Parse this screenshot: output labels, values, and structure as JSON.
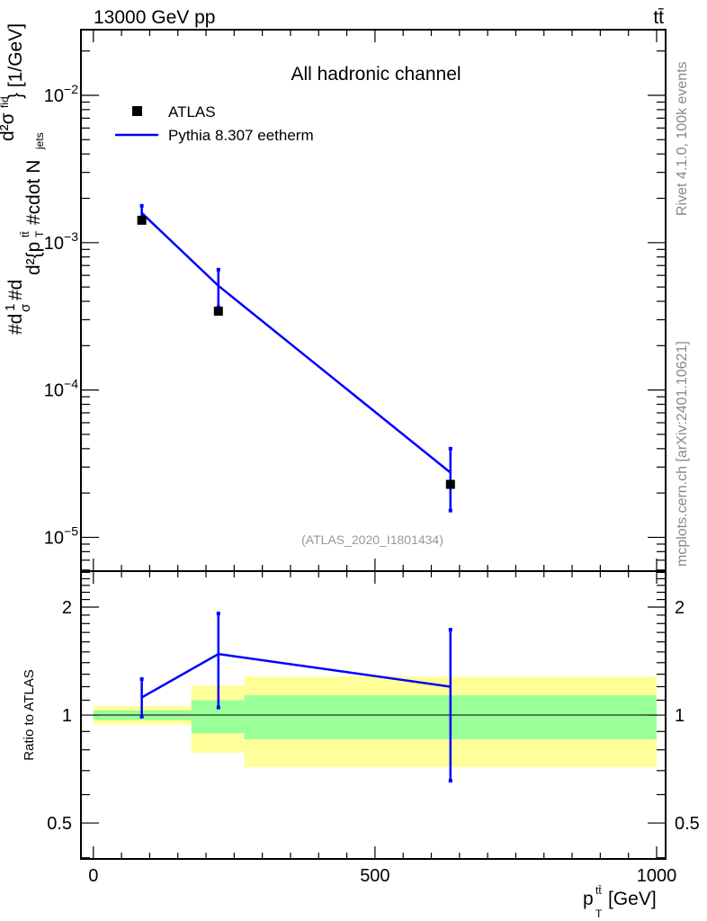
{
  "chart_data": [
    {
      "type": "line",
      "panel": "main",
      "title": "All hadronic channel",
      "top_left_label": "13000 GeV pp",
      "top_right_label": "tt̄",
      "ylabel": "#d¹/σ#d d²σ / d²{p_T^tt̄ #cdot N_jets} [1/GeV]",
      "ylabel_parts": {
        "a": "#d",
        "b": "1",
        "c": "σ",
        "d": "#d",
        "num": "d²σ",
        "num_sup": "fid",
        "den": "d²{p",
        "den_sup": "tt̄",
        "den_sub": "T",
        "den_rest": " #cdot N",
        "den_sub2": "jets",
        "unit": "} [1/GeV]"
      },
      "yscale": "log",
      "ylim": [
        5.9e-06,
        0.0279
      ],
      "yticks": [
        {
          "v": 0.01,
          "base": "10",
          "exp": "−2"
        },
        {
          "v": 0.001,
          "base": "10",
          "exp": "−3"
        },
        {
          "v": 0.0001,
          "base": "10",
          "exp": "−4"
        },
        {
          "v": 1e-05,
          "base": "10",
          "exp": "−5"
        }
      ],
      "xlim": [
        -22,
        1016
      ],
      "legend": {
        "placement": "top-left",
        "entries": [
          "ATLAS",
          "Pythia 8.307 eetherm"
        ]
      },
      "annotation": "(ATLAS_2020_I1801434)",
      "side_text_1": "Rivet 4.1.0,  100k events",
      "side_text_2": "mcplots.cern.ch [arXiv:2401.10621]",
      "series": [
        {
          "name": "ATLAS",
          "style": "markers",
          "color": "#000000",
          "x": [
            86,
            222,
            634
          ],
          "y": [
            0.00142,
            0.000343,
            2.29e-05
          ]
        },
        {
          "name": "Pythia 8.307 eetherm",
          "style": "line",
          "color": "#0000ff",
          "x": [
            86,
            222,
            634
          ],
          "y": [
            0.00159,
            0.00051,
            2.75e-05
          ],
          "yerr_up": [
            0.00178,
            0.000656,
            4e-05
          ],
          "yerr_down": [
            0.00142,
            0.000365,
            1.52e-05
          ]
        }
      ]
    },
    {
      "type": "line",
      "panel": "ratio",
      "ylabel": "Ratio to ATLAS",
      "xlabel": "p_T^tt̄ [GeV]",
      "xlabel_parts": {
        "p": "p",
        "sup": "tt̄",
        "sub": "T",
        "unit": " [GeV]"
      },
      "yscale": "log",
      "ylim": [
        0.397,
        2.52
      ],
      "yticks": [
        {
          "v": 2,
          "label": "2"
        },
        {
          "v": 1,
          "label": "1"
        },
        {
          "v": 0.5,
          "label": "0.5"
        }
      ],
      "xlim": [
        -22,
        1016
      ],
      "xticks": [
        {
          "v": 0,
          "label": "0"
        },
        {
          "v": 500,
          "label": "500"
        },
        {
          "v": 1000,
          "label": "1000"
        }
      ],
      "bands": {
        "edges": [
          0,
          174,
          268,
          1000
        ],
        "yellow": {
          "color": "#ffff99",
          "up": [
            1.06,
            1.21,
            1.28
          ],
          "down": [
            0.94,
            0.785,
            0.716
          ]
        },
        "green": {
          "color": "#99ff99",
          "up": [
            1.03,
            1.1,
            1.135
          ],
          "down": [
            0.97,
            0.89,
            0.856
          ]
        }
      },
      "series": [
        {
          "name": "Pythia 8.307 eetherm",
          "color": "#0000ff",
          "x": [
            86,
            222,
            634
          ],
          "y": [
            1.12,
            1.48,
            1.2
          ],
          "yerr_up": [
            1.26,
            1.92,
            1.73
          ],
          "yerr_down": [
            0.99,
            1.05,
            0.656
          ]
        }
      ]
    }
  ]
}
